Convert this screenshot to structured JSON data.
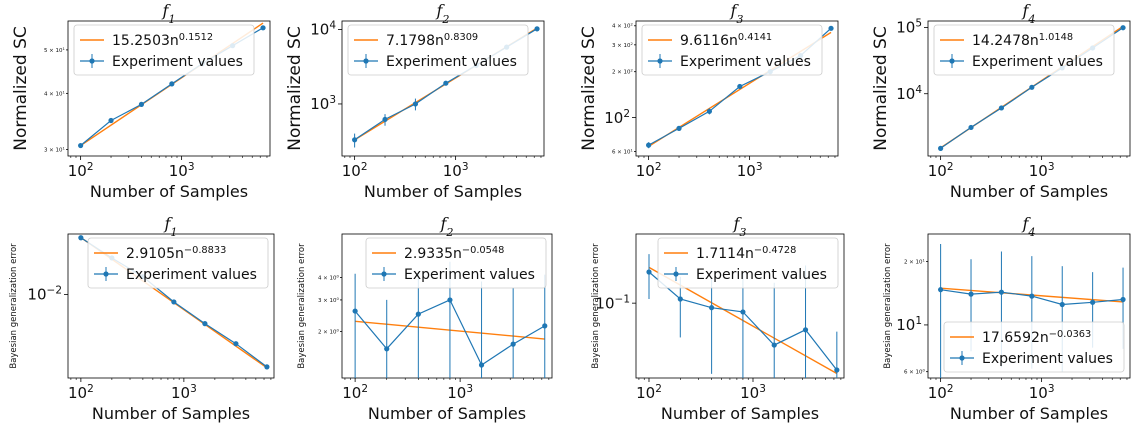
{
  "colors": {
    "fit": "#ff7f0e",
    "experiment": "#1f77b4",
    "axis": "#000000",
    "legend_border": "#cccccc"
  },
  "chart_data": [
    {
      "type": "line",
      "title": "f",
      "title_sub": "1",
      "xlabel": "Number of Samples",
      "ylabel": "Normalized SC",
      "xscale": "log",
      "yscale": "log",
      "xlim": [
        75,
        7500
      ],
      "ylim": [
        29,
        58
      ],
      "x_ticks": [
        {
          "value": 100,
          "base": "10",
          "exp": "2"
        },
        {
          "value": 1000,
          "base": "10",
          "exp": "3"
        }
      ],
      "y_ticks": [
        {
          "value": 30,
          "base": "3 × 10",
          "exp": "1"
        },
        {
          "value": 40,
          "base": "4 × 10",
          "exp": "1"
        },
        {
          "value": 50,
          "base": "5 × 10",
          "exp": "1"
        }
      ],
      "legend_position": "top-left",
      "fit": {
        "coef": "15.2503",
        "base": "n",
        "exp": "0.1512",
        "x": [
          100,
          6400
        ]
      },
      "series": [
        {
          "name": "Experiment values",
          "x": [
            100,
            200,
            400,
            800,
            1600,
            3200,
            6400
          ],
          "y": [
            30.6,
            34.8,
            37.8,
            42.0,
            46.6,
            51.1,
            56.0
          ],
          "err": [
            0.3,
            0.3,
            0.3,
            0.3,
            0.3,
            0.3,
            0.3
          ]
        }
      ]
    },
    {
      "type": "line",
      "title": "f",
      "title_sub": "2",
      "xlabel": "Number of Samples",
      "ylabel": "Normalized SC",
      "xscale": "log",
      "yscale": "log",
      "xlim": [
        75,
        7500
      ],
      "ylim": [
        200,
        13000
      ],
      "x_ticks": [
        {
          "value": 100,
          "base": "10",
          "exp": "2"
        },
        {
          "value": 1000,
          "base": "10",
          "exp": "3"
        }
      ],
      "y_ticks": [
        {
          "value": 1000,
          "base": "10",
          "exp": "3"
        },
        {
          "value": 10000,
          "base": "10",
          "exp": "4"
        }
      ],
      "legend_position": "top-left",
      "fit": {
        "coef": "7.1798",
        "base": "n",
        "exp": "0.8309",
        "x": [
          100,
          6400
        ]
      },
      "series": [
        {
          "name": "Experiment values",
          "x": [
            100,
            200,
            400,
            800,
            1600,
            3200,
            6400
          ],
          "y": [
            330,
            620,
            1000,
            1900,
            3300,
            5800,
            10200
          ],
          "err": [
            70,
            110,
            180,
            80,
            70,
            80,
            100
          ]
        }
      ]
    },
    {
      "type": "line",
      "title": "f",
      "title_sub": "3",
      "xlabel": "",
      "ylabel": "Normalized SC",
      "xscale": "log",
      "yscale": "log",
      "xlim": [
        75,
        7500
      ],
      "ylim": [
        56,
        430
      ],
      "x_ticks": [
        {
          "value": 100,
          "base": "10",
          "exp": "2"
        },
        {
          "value": 1000,
          "base": "10",
          "exp": "3"
        }
      ],
      "y_ticks": [
        {
          "value": 60,
          "base": "6 × 10",
          "exp": "1"
        },
        {
          "value": 100,
          "base": "10",
          "exp": "2"
        },
        {
          "value": 200,
          "base": "2 × 10",
          "exp": "2"
        },
        {
          "value": 300,
          "base": "3 × 10",
          "exp": "2"
        },
        {
          "value": 400,
          "base": "4 × 10",
          "exp": "2"
        }
      ],
      "legend_position": "top-left",
      "fit": {
        "coef": "9.6116",
        "base": "n",
        "exp": "0.4141",
        "x": [
          100,
          6400
        ]
      },
      "series": [
        {
          "name": "Experiment values",
          "x": [
            100,
            200,
            400,
            800,
            1600,
            3200,
            6400
          ],
          "y": [
            66,
            85,
            110,
            160,
            200,
            255,
            385
          ],
          "err": [
            3,
            3,
            5,
            3,
            3,
            3,
            5
          ]
        }
      ]
    },
    {
      "type": "line",
      "title": "f",
      "title_sub": "4",
      "xlabel": "Number of Samples",
      "ylabel": "Normalized SC",
      "xscale": "log",
      "yscale": "log",
      "xlim": [
        75,
        7500
      ],
      "ylim": [
        1150,
        125000
      ],
      "x_ticks": [
        {
          "value": 100,
          "base": "10",
          "exp": "2"
        },
        {
          "value": 1000,
          "base": "10",
          "exp": "3"
        }
      ],
      "y_ticks": [
        {
          "value": 10000,
          "base": "10",
          "exp": "4"
        },
        {
          "value": 100000,
          "base": "10",
          "exp": "5"
        }
      ],
      "legend_position": "top-left",
      "fit": {
        "coef": "14.2478",
        "base": "n",
        "exp": "1.0148",
        "x": [
          100,
          6400
        ]
      },
      "series": [
        {
          "name": "Experiment values",
          "x": [
            100,
            200,
            400,
            800,
            1600,
            3200,
            6400
          ],
          "y": [
            1500,
            3100,
            6100,
            12500,
            24500,
            49000,
            99000
          ],
          "err": [
            100,
            150,
            100,
            100,
            100,
            100,
            100
          ]
        }
      ]
    },
    {
      "type": "line",
      "title": "f",
      "title_sub": "1",
      "xlabel": "Number of Samples",
      "ylabel": "Bayesian generalization error",
      "xscale": "log",
      "yscale": "log",
      "xlim": [
        75,
        7500
      ],
      "ylim": [
        0.00095,
        0.055
      ],
      "x_ticks": [
        {
          "value": 100,
          "base": "10",
          "exp": "2"
        },
        {
          "value": 1000,
          "base": "10",
          "exp": "3"
        }
      ],
      "y_ticks": [
        {
          "value": 0.01,
          "base": "10",
          "exp": "−2"
        }
      ],
      "legend_position": "top-right",
      "fit": {
        "coef": "2.9105",
        "base": "n",
        "exp": "−0.8833",
        "x": [
          100,
          6400
        ]
      },
      "series": [
        {
          "name": "Experiment values",
          "x": [
            100,
            200,
            400,
            800,
            1600,
            3200,
            6400
          ],
          "y": [
            0.0495,
            0.028,
            0.0165,
            0.0081,
            0.0044,
            0.0025,
            0.0013
          ],
          "err": [
            0,
            0,
            0,
            0,
            0,
            0,
            0
          ]
        }
      ]
    },
    {
      "type": "line",
      "title": "f",
      "title_sub": "2",
      "xlabel": "Number of Samples",
      "ylabel": "Bayesian generalization error",
      "xscale": "log",
      "yscale": "log",
      "xlim": [
        75,
        7500
      ],
      "ylim": [
        1.1,
        7.0
      ],
      "x_ticks": [
        {
          "value": 100,
          "base": "10",
          "exp": "2"
        },
        {
          "value": 1000,
          "base": "10",
          "exp": "3"
        }
      ],
      "y_ticks": [
        {
          "value": 2,
          "base": "2 × 10",
          "exp": "0"
        },
        {
          "value": 3,
          "base": "3 × 10",
          "exp": "0"
        },
        {
          "value": 4,
          "base": "4 × 10",
          "exp": "0"
        }
      ],
      "legend_position": "top-right",
      "fit": {
        "coef": "2.9335",
        "base": "n",
        "exp": "−0.0548",
        "x": [
          100,
          6400
        ]
      },
      "series": [
        {
          "name": "Experiment values",
          "x": [
            100,
            200,
            400,
            800,
            1600,
            3200,
            6400
          ],
          "y": [
            2.6,
            1.6,
            2.5,
            3.0,
            1.3,
            1.7,
            2.15
          ],
          "err": [
            1.6,
            1.4,
            1.8,
            1.9,
            2.5,
            1.8,
            2.0
          ]
        }
      ]
    },
    {
      "type": "line",
      "title": "f",
      "title_sub": "3",
      "xlabel": "Number of Samples",
      "ylabel": "Bayesian generalization error",
      "xscale": "log",
      "yscale": "log",
      "xlim": [
        75,
        7500
      ],
      "ylim": [
        0.025,
        0.36
      ],
      "x_ticks": [
        {
          "value": 100,
          "base": "10",
          "exp": "2"
        },
        {
          "value": 1000,
          "base": "10",
          "exp": "3"
        }
      ],
      "y_ticks": [
        {
          "value": 0.1,
          "base": "10",
          "exp": "−1"
        }
      ],
      "legend_position": "top-right",
      "fit": {
        "coef": "1.7114",
        "base": "n",
        "exp": "−0.4728",
        "x": [
          100,
          6400
        ]
      },
      "series": [
        {
          "name": "Experiment values",
          "x": [
            100,
            200,
            400,
            800,
            1600,
            3200,
            6400
          ],
          "y": [
            0.178,
            0.108,
            0.092,
            0.085,
            0.046,
            0.061,
            0.029
          ],
          "err": [
            0.07,
            0.055,
            0.065,
            0.09,
            0.1,
            0.14,
            0.03
          ]
        }
      ]
    },
    {
      "type": "line",
      "title": "f",
      "title_sub": "4",
      "xlabel": "Number of Samples",
      "ylabel": "Bayesian generalization error",
      "xscale": "log",
      "yscale": "log",
      "xlim": [
        75,
        7500
      ],
      "ylim": [
        5.6,
        27
      ],
      "x_ticks": [
        {
          "value": 100,
          "base": "10",
          "exp": "2"
        },
        {
          "value": 1000,
          "base": "10",
          "exp": "3"
        }
      ],
      "y_ticks": [
        {
          "value": 6,
          "base": "6 × 10",
          "exp": "0"
        },
        {
          "value": 10,
          "base": "10",
          "exp": "1"
        },
        {
          "value": 20,
          "base": "2 × 10",
          "exp": "1"
        }
      ],
      "legend_position": "bottom-right",
      "fit": {
        "coef": "17.6592",
        "base": "n",
        "exp": "−0.0363",
        "x": [
          100,
          6400
        ]
      },
      "series": [
        {
          "name": "Experiment values",
          "x": [
            100,
            200,
            400,
            800,
            1600,
            3200,
            6400
          ],
          "y": [
            14.7,
            14.0,
            14.3,
            13.7,
            12.5,
            12.8,
            13.2
          ],
          "err": [
            9.5,
            6.5,
            8.0,
            7.5,
            6.5,
            5.0,
            5.5
          ]
        }
      ]
    }
  ]
}
